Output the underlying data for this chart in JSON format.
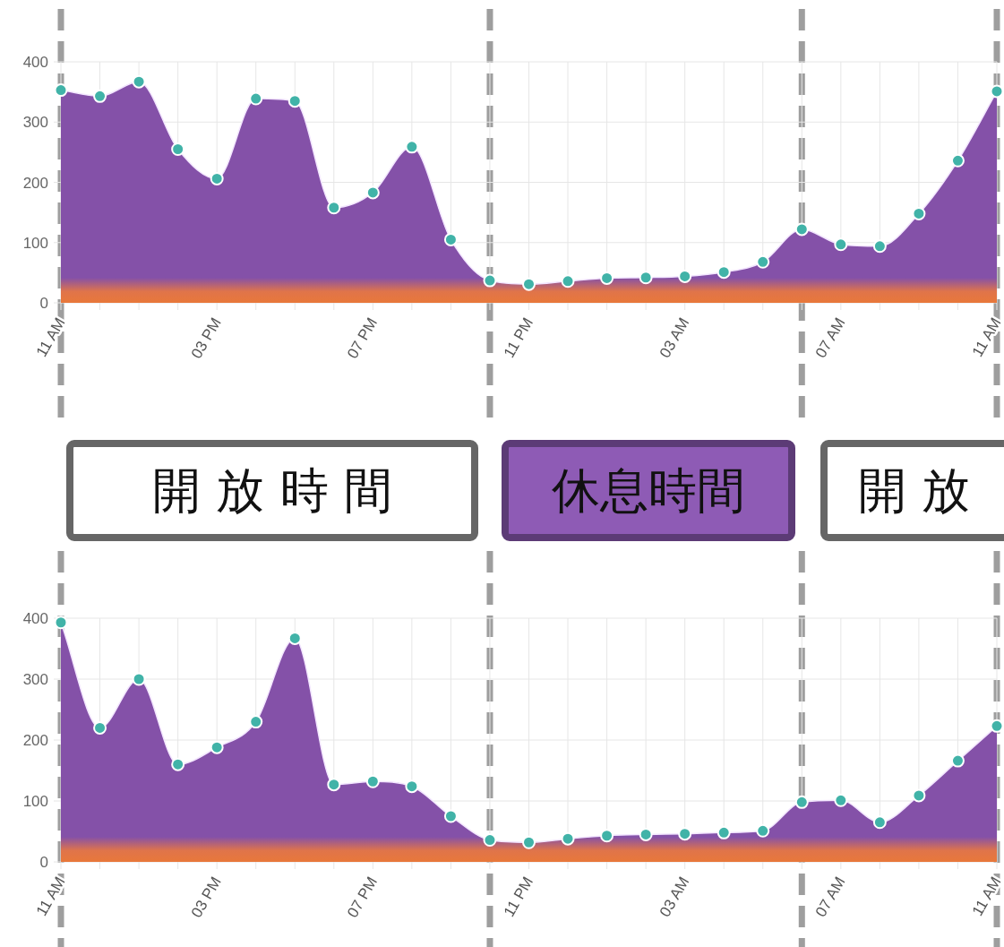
{
  "chart_data": [
    {
      "type": "area",
      "categories": [
        "11 AM",
        null,
        null,
        null,
        "03 PM",
        null,
        null,
        null,
        "07 PM",
        null,
        null,
        null,
        "11 PM",
        null,
        null,
        null,
        "03 AM",
        null,
        null,
        null,
        "07 AM",
        null,
        null,
        null,
        "11 AM"
      ],
      "series": [
        {
          "color": "#8451a8",
          "values": [
            353,
            343,
            367,
            255,
            206,
            339,
            335,
            158,
            183,
            259,
            105,
            37,
            31,
            36,
            41,
            42,
            44,
            51,
            68,
            122,
            97,
            94,
            148,
            236,
            351
          ]
        }
      ],
      "ylim": [
        0,
        400
      ],
      "yticks": [
        0,
        100,
        200,
        300,
        400
      ],
      "grid": true,
      "marker": "circle"
    },
    {
      "type": "other",
      "annotations": [
        "開 放 時 間",
        "休息時間",
        "開 放"
      ],
      "colors": [
        "#ffffff",
        "#8e5bb5",
        "#ffffff"
      ]
    },
    {
      "type": "area",
      "categories": [
        "11 AM",
        null,
        null,
        null,
        "03 PM",
        null,
        null,
        null,
        "07 PM",
        null,
        null,
        null,
        "11 PM",
        null,
        null,
        null,
        "03 AM",
        null,
        null,
        null,
        "07 AM",
        null,
        null,
        null,
        "11 AM"
      ],
      "series": [
        {
          "color": "#8451a8",
          "values": [
            393,
            220,
            300,
            160,
            188,
            230,
            367,
            127,
            132,
            124,
            75,
            36,
            32,
            38,
            43,
            45,
            46,
            48,
            51,
            98,
            101,
            65,
            109,
            166,
            223
          ]
        }
      ],
      "ylim": [
        0,
        400
      ],
      "yticks": [
        0,
        100,
        200,
        300,
        400
      ],
      "grid": true,
      "marker": "circle"
    }
  ]
}
